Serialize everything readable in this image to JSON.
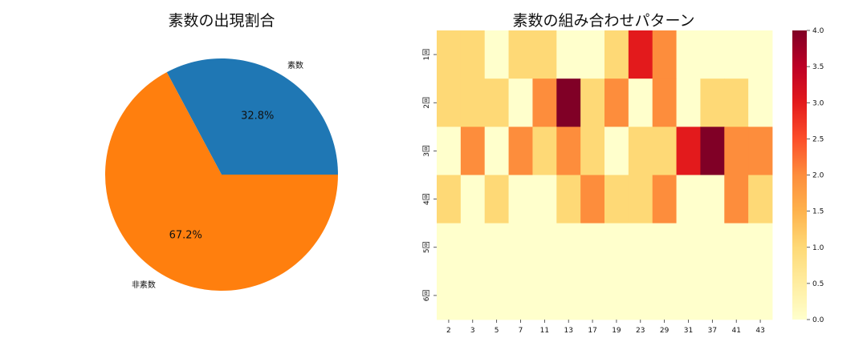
{
  "chart_data": [
    {
      "type": "pie",
      "title": "素数の出現割合",
      "labels": [
        "素数",
        "非素数"
      ],
      "values": [
        32.8,
        67.2
      ],
      "percent_labels": [
        "32.8%",
        "67.2%"
      ],
      "colors": [
        "#1f77b4",
        "#ff7f0e"
      ],
      "start_angle_deg": 0,
      "direction": "counterclockwise"
    },
    {
      "type": "heatmap",
      "title": "素数の組み合わせパターン",
      "x_categories": [
        "2",
        "3",
        "5",
        "7",
        "11",
        "13",
        "17",
        "19",
        "23",
        "29",
        "31",
        "37",
        "41",
        "43"
      ],
      "y_categories": [
        "1回",
        "2回",
        "3回",
        "4回",
        "5回",
        "6回"
      ],
      "values": [
        [
          1,
          1,
          0,
          1,
          1,
          0,
          0,
          1,
          3,
          2,
          0,
          0,
          0,
          0
        ],
        [
          1,
          1,
          1,
          0,
          2,
          4,
          1,
          2,
          0,
          2,
          0,
          1,
          1,
          0
        ],
        [
          0,
          2,
          0,
          2,
          1,
          2,
          1,
          0,
          1,
          1,
          3,
          4,
          2,
          2
        ],
        [
          1,
          0,
          1,
          0,
          0,
          1,
          2,
          1,
          1,
          2,
          0,
          0,
          2,
          1
        ],
        [
          0,
          0,
          0,
          0,
          0,
          0,
          0,
          0,
          0,
          0,
          0,
          0,
          0,
          0
        ],
        [
          0,
          0,
          0,
          0,
          0,
          0,
          0,
          0,
          0,
          0,
          0,
          0,
          0,
          0
        ]
      ],
      "colormap": "YlOrRd",
      "vmin": 0,
      "vmax": 4,
      "colorbar_ticks": [
        "0.0",
        "0.5",
        "1.0",
        "1.5",
        "2.0",
        "2.5",
        "3.0",
        "3.5",
        "4.0"
      ]
    }
  ]
}
